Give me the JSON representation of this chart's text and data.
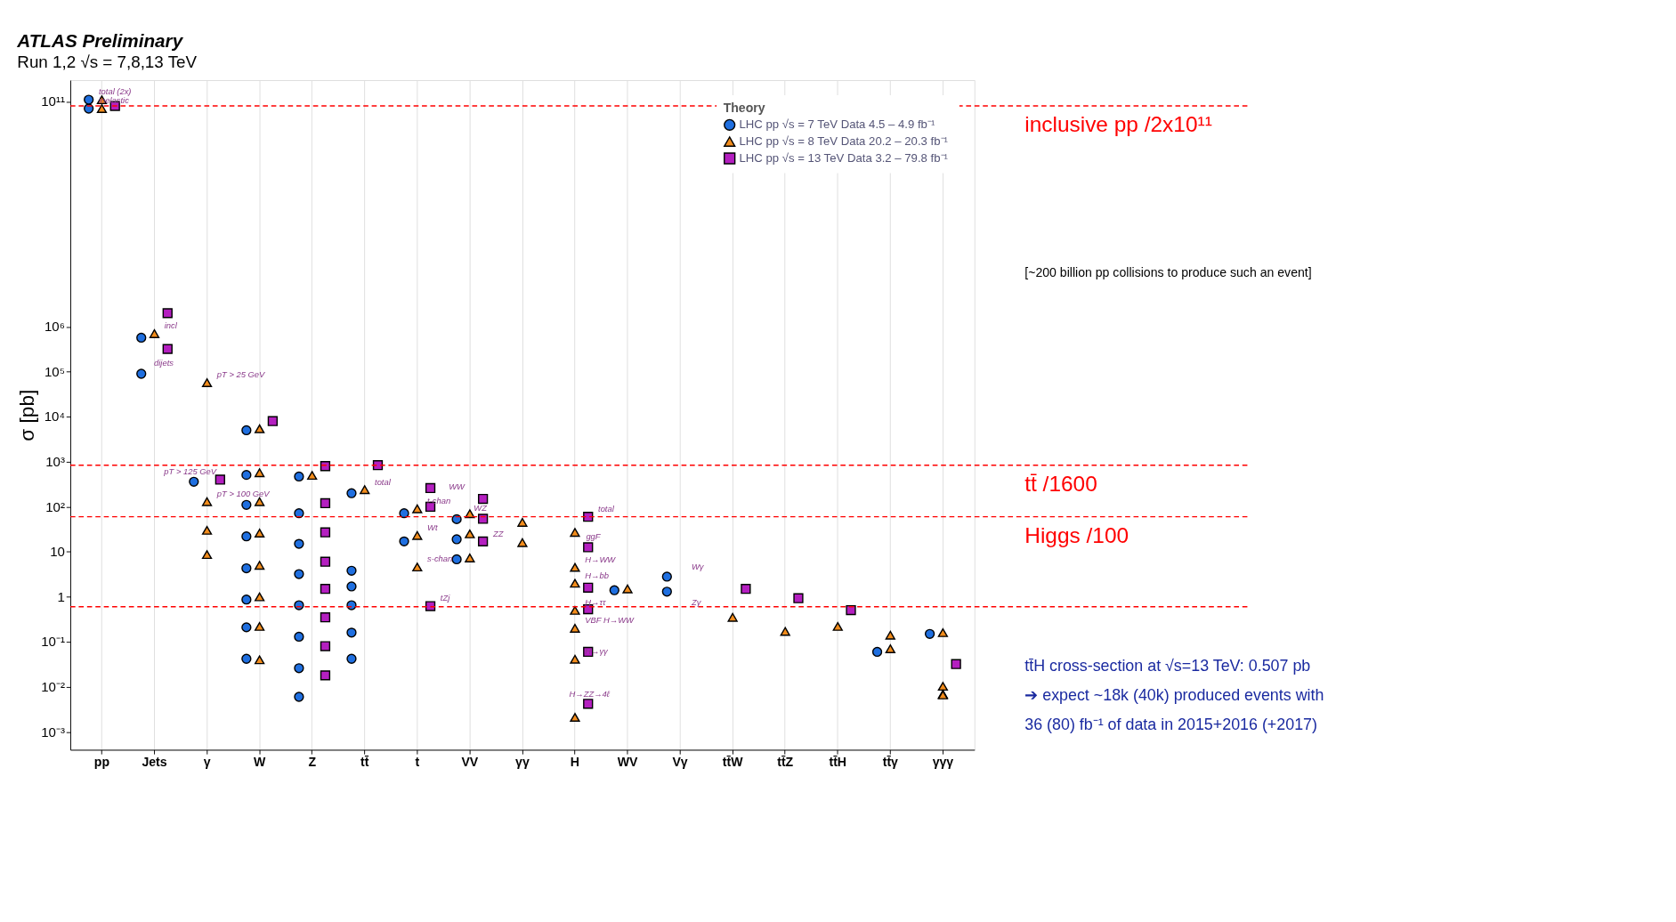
{
  "chart_data": {
    "type": "scatter",
    "title": "ATLAS Preliminary",
    "subtitle": "Run 1,2  √s = 7,8,13 TeV",
    "ylabel": "σ [pb]",
    "categories": [
      "pp",
      "Jets",
      "γ",
      "W",
      "Z",
      "tt̄",
      "t",
      "VV",
      "γγ",
      "H",
      "WV",
      "Vγ",
      "tt̄W",
      "tt̄Z",
      "tt̄H",
      "tt̄γ",
      "γγγ"
    ],
    "log": true,
    "ylim": [
      0.0004,
      300000000000
    ],
    "yticks": [
      {
        "value": 0.001,
        "label": "10⁻³"
      },
      {
        "value": 0.01,
        "label": "10⁻²"
      },
      {
        "value": 0.1,
        "label": "10⁻¹"
      },
      1,
      10,
      {
        "value": 100,
        "label": "10²"
      },
      {
        "value": 1000,
        "label": "10³"
      },
      {
        "value": 10000,
        "label": "10⁴"
      },
      {
        "value": 100000,
        "label": "10⁵"
      },
      {
        "value": 1000000,
        "label": "10⁶"
      },
      {
        "value": 100000000000,
        "label": "10¹¹"
      }
    ],
    "grid": "x",
    "legend": "top right",
    "legend_title": "Theory",
    "series": [
      {
        "name": "LHC pp √s = 7 TeV  Data 4.5 – 4.9 fb⁻¹",
        "color": "#1f6fe0",
        "marker": "circle",
        "x": [
          "pp",
          "pp",
          "Jets",
          "Jets",
          "γ",
          "W",
          "W",
          "W",
          "W",
          "W",
          "W",
          "W",
          "W",
          "Z",
          "Z",
          "Z",
          "Z",
          "Z",
          "Z",
          "Z",
          "Z",
          "tt̄",
          "tt̄",
          "tt̄",
          "tt̄",
          "tt̄",
          "tt̄",
          "t",
          "t",
          "VV",
          "VV",
          "VV",
          "WV",
          "Vγ",
          "Vγ",
          "tt̄γ",
          "γγγ"
        ],
        "values": [
          70000000000,
          110000000000,
          570000,
          90000,
          360,
          5000,
          510,
          110,
          22,
          4.3,
          0.87,
          0.21,
          0.042,
          470,
          72,
          15,
          3.2,
          0.65,
          0.13,
          0.026,
          0.006,
          200,
          3.8,
          1.7,
          0.65,
          0.16,
          0.042,
          72,
          17,
          53,
          19,
          6.8,
          1.4,
          2.8,
          1.3,
          0.06,
          0.15
        ]
      },
      {
        "name": "LHC pp √s = 8 TeV  Data 20.2 – 20.3 fb⁻¹",
        "color": "#f28c1c",
        "marker": "triangle",
        "x": [
          "pp",
          "pp",
          "Jets",
          "γ",
          "γ",
          "γ",
          "γ",
          "W",
          "W",
          "W",
          "W",
          "W",
          "W",
          "W",
          "W",
          "Z",
          "tt̄",
          "t",
          "t",
          "t",
          "VV",
          "VV",
          "VV",
          "γγ",
          "γγ",
          "H",
          "H",
          "H",
          "H",
          "H",
          "H",
          "H",
          "WV",
          "tt̄W",
          "tt̄Z",
          "tt̄H",
          "tt̄γ",
          "tt̄γ",
          "γγγ",
          "γγγ",
          "γγγ",
          "γγγ"
        ],
        "values": [
          70000000000,
          110000000000,
          700000,
          57000,
          130,
          30,
          8.7,
          5400,
          570,
          130,
          26,
          5,
          1,
          0.22,
          0.04,
          500,
          240,
          90,
          23,
          4.6,
          70,
          25,
          7.3,
          45,
          16,
          27,
          4.5,
          2,
          0.5,
          0.2,
          0.041,
          0.0021,
          1.5,
          0.35,
          0.17,
          0.22,
          0.14,
          0.07,
          0.16,
          0.0103,
          0.0069,
          0.0066
        ]
      },
      {
        "name": "LHC pp √s = 13 TeV  Data 3.2 – 79.8 fb⁻¹",
        "color": "#b41fc0",
        "marker": "square",
        "x": [
          "pp",
          "Jets",
          "Jets",
          "γ",
          "W",
          "Z",
          "Z",
          "Z",
          "Z",
          "Z",
          "Z",
          "Z",
          "Z",
          "tt̄",
          "t",
          "t",
          "t",
          "VV",
          "VV",
          "VV",
          "H",
          "H",
          "H",
          "H",
          "H",
          "H",
          "tt̄W",
          "tt̄Z",
          "tt̄H",
          "γγγ"
        ],
        "values": [
          80000000000,
          2000000,
          320000,
          400,
          8000,
          800,
          120,
          27,
          6,
          1.5,
          0.35,
          0.08,
          0.018,
          840,
          260,
          100,
          0.62,
          150,
          54,
          17,
          60,
          12.6,
          1.6,
          0.53,
          0.06,
          0.0042,
          1.5,
          0.93,
          0.507,
          0.032
        ]
      }
    ],
    "ref_lines": [
      {
        "axis": "y",
        "value": 80000000000,
        "label": "inclusive pp /2x10¹¹",
        "color": "#ff0000",
        "line_style": "dashed"
      },
      {
        "axis": "y",
        "value": 840,
        "label": "tt̄ /1600",
        "color": "#ff0000",
        "line_style": "dashed"
      },
      {
        "axis": "y",
        "value": 60,
        "label": "Higgs /100",
        "color": "#ff0000",
        "line_style": "dashed"
      },
      {
        "axis": "y",
        "value": 0.6,
        "label": null,
        "color": "#ff0000",
        "line_style": "dashed"
      }
    ],
    "annotations": [
      {
        "text": "total (2x)",
        "x": "pp",
        "y": 110000000000
      },
      {
        "text": "inelastic",
        "x": "pp",
        "y": 70000000000
      },
      {
        "text": "incl",
        "x": "Jets",
        "y": 700000
      },
      "dijets",
      {
        "text": "pT > 25 GeV",
        "x": "γ",
        "y": 57000
      },
      "pT > 125 GeV",
      {
        "text": "pT > 100 GeV",
        "x": "γ",
        "y": 130
      },
      {
        "text": "total",
        "x": "tt̄",
        "y": 240
      },
      {
        "text": "t-chan",
        "x": "t",
        "y": 90
      },
      {
        "text": "Wt",
        "x": "t",
        "y": 23
      },
      {
        "text": "s-chan",
        "x": "t",
        "y": 4.6
      },
      {
        "text": "tZj",
        "x": "t",
        "y": 0.62
      },
      "WW",
      "WZ",
      {
        "text": "ZZ",
        "x": "VV",
        "y": 17
      },
      {
        "text": "total",
        "x": "H",
        "y": 60
      },
      "ggF",
      {
        "text": "H→WW",
        "x": "H",
        "y": 4.5
      },
      {
        "text": "H→bb",
        "x": "H",
        "y": 2
      },
      {
        "text": "H→ττ",
        "x": "H",
        "y": 0.5
      },
      {
        "text": "VBF H→WW",
        "x": "H",
        "y": 0.2
      },
      {
        "text": "H→γγ",
        "x": "H",
        "y": 0.041
      },
      "H→ZZ→4ℓ",
      "Wγ",
      "Zγ",
      "[~200 billion pp collisions to produce such an event]",
      "tt̄H cross-section at √s=13 TeV: 0.507 pb",
      "➔ expect ~18k (40k) produced events with",
      "36 (80) fb⁻¹ of data in 2015+2016 (+2017)"
    ]
  }
}
